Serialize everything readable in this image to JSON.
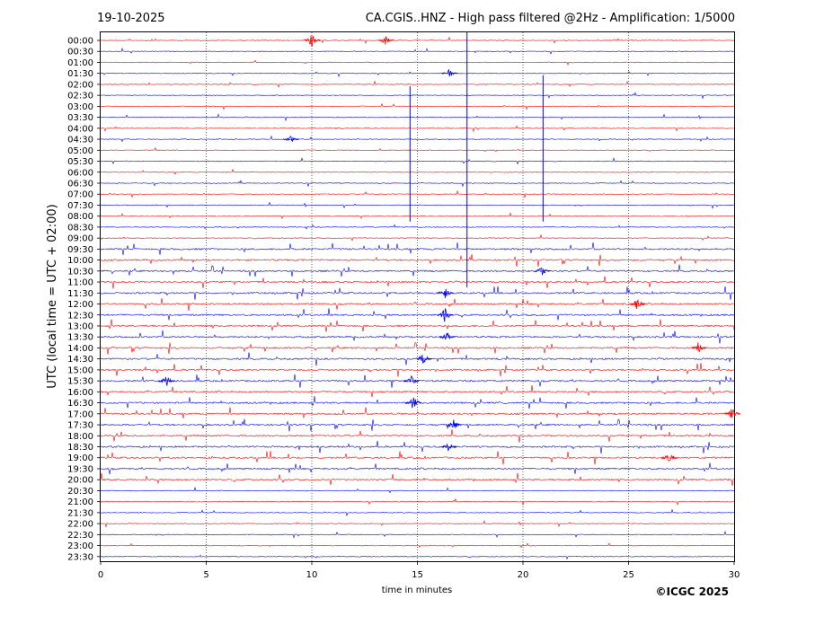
{
  "header": {
    "date": "19-10-2025",
    "title": "CA.CGIS..HNZ - High pass filtered @2Hz - Amplification: 1/5000"
  },
  "footer": {
    "copyright": "©ICGC 2025"
  },
  "chart_data": {
    "type": "line",
    "title": "CA.CGIS..HNZ - High pass filtered @2Hz - Amplification: 1/5000",
    "xlabel": "time in minutes",
    "ylabel": "UTC (local time = UTC + 02:00)",
    "xlim": [
      0,
      30
    ],
    "x_ticks": [
      0,
      5,
      10,
      15,
      20,
      25,
      30
    ],
    "vertical_grid": [
      5,
      10,
      15,
      20,
      25
    ],
    "rows": [
      "00:00",
      "00:30",
      "01:00",
      "01:30",
      "02:00",
      "02:30",
      "03:00",
      "03:30",
      "04:00",
      "04:30",
      "05:00",
      "05:30",
      "06:00",
      "06:30",
      "07:00",
      "07:30",
      "08:00",
      "08:30",
      "09:00",
      "09:30",
      "10:00",
      "10:30",
      "11:00",
      "11:30",
      "12:00",
      "12:30",
      "13:00",
      "13:30",
      "14:00",
      "14:30",
      "15:00",
      "15:30",
      "16:00",
      "16:30",
      "17:00",
      "17:30",
      "18:00",
      "18:30",
      "19:00",
      "19:30",
      "20:00",
      "20:30",
      "21:00",
      "21:30",
      "22:00",
      "22:30",
      "23:00",
      "23:30"
    ],
    "trace_colors": [
      "#ff0000",
      "#0000ff"
    ],
    "events": [
      {
        "row": 0,
        "minute": 10.0,
        "amp": 0.6
      },
      {
        "row": 0,
        "minute": 13.5,
        "amp": 0.4
      },
      {
        "row": 3,
        "minute": 16.5,
        "amp": 0.4
      },
      {
        "row": 9,
        "minute": 9.0,
        "amp": 0.3
      },
      {
        "row": 23,
        "minute": 16.3,
        "amp": 0.5
      },
      {
        "row": 25,
        "minute": 16.3,
        "amp": 0.7
      },
      {
        "row": 27,
        "minute": 16.4,
        "amp": 0.5
      },
      {
        "row": 29,
        "minute": 15.3,
        "amp": 0.6
      },
      {
        "row": 31,
        "minute": 3.1,
        "amp": 0.6
      },
      {
        "row": 31,
        "minute": 14.7,
        "amp": 0.5
      },
      {
        "row": 33,
        "minute": 14.8,
        "amp": 0.6
      },
      {
        "row": 35,
        "minute": 16.7,
        "amp": 0.6
      },
      {
        "row": 37,
        "minute": 16.5,
        "amp": 0.5
      },
      {
        "row": 38,
        "minute": 26.9,
        "amp": 0.5
      },
      {
        "row": 28,
        "minute": 28.3,
        "amp": 0.5
      },
      {
        "row": 24,
        "minute": 25.4,
        "amp": 0.5
      },
      {
        "row": 21,
        "minute": 20.9,
        "amp": 0.4
      },
      {
        "row": 34,
        "minute": 29.9,
        "amp": 0.5
      }
    ],
    "spikes": [
      {
        "minute": 17.35,
        "row_from": 0,
        "row_to": 22.5,
        "color": "#0000ff"
      },
      {
        "minute": 14.65,
        "row_from": 5,
        "row_to": 16.5,
        "color": "#0000ff"
      },
      {
        "minute": 20.95,
        "row_from": 4,
        "row_to": 16.5,
        "color": "#0000ff"
      }
    ]
  }
}
